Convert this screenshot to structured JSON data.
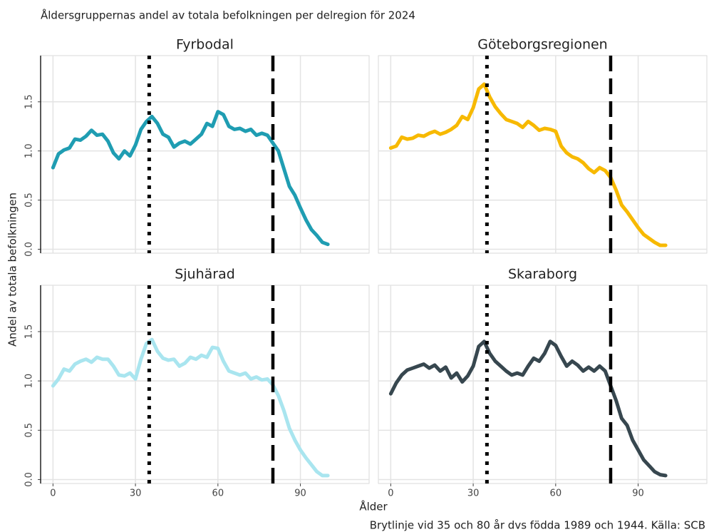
{
  "figure": {
    "title": "Åldersgruppernas andel av totala befolkningen per delregion för 2024",
    "xlabel": "Ålder",
    "ylabel": "Andel av totala befolkningen",
    "caption": "Brytlinje vid 35 och 80 år dvs födda 1989 och 1944. Källa: SCB"
  },
  "chart_data": [
    {
      "type": "line",
      "title": "Fyrbodal",
      "color": "#1f9db2",
      "x": [
        0,
        2,
        4,
        6,
        8,
        10,
        12,
        14,
        16,
        18,
        20,
        22,
        24,
        26,
        28,
        30,
        32,
        34,
        36,
        38,
        40,
        42,
        44,
        46,
        48,
        50,
        52,
        54,
        56,
        58,
        60,
        62,
        64,
        66,
        68,
        70,
        72,
        74,
        76,
        78,
        80,
        82,
        84,
        86,
        88,
        90,
        92,
        94,
        96,
        98,
        100
      ],
      "values": [
        0.83,
        0.97,
        1.01,
        1.03,
        1.12,
        1.11,
        1.15,
        1.21,
        1.16,
        1.17,
        1.1,
        0.98,
        0.92,
        1.0,
        0.95,
        1.06,
        1.22,
        1.3,
        1.35,
        1.28,
        1.17,
        1.14,
        1.04,
        1.08,
        1.1,
        1.07,
        1.12,
        1.17,
        1.28,
        1.25,
        1.4,
        1.37,
        1.25,
        1.22,
        1.23,
        1.2,
        1.22,
        1.16,
        1.18,
        1.16,
        1.08,
        1.0,
        0.82,
        0.64,
        0.55,
        0.42,
        0.3,
        0.2,
        0.14,
        0.07,
        0.05
      ],
      "xlim": [
        -4.5,
        115
      ],
      "ylim": [
        -0.04,
        1.97
      ],
      "xticks": [
        0,
        30,
        60,
        90
      ],
      "yticks": [
        {
          "value": 0,
          "label": "0.0"
        },
        0.5,
        {
          "value": 1,
          "label": "1.0"
        },
        1.5
      ],
      "grid": true,
      "vlines": [
        {
          "value": 35,
          "style": "dotted"
        },
        {
          "value": 80,
          "style": "dashed"
        }
      ]
    },
    {
      "type": "line",
      "title": "Göteborgsregionen",
      "color": "#f7b900",
      "x": [
        0,
        2,
        4,
        6,
        8,
        10,
        12,
        14,
        16,
        18,
        20,
        22,
        24,
        26,
        28,
        30,
        32,
        34,
        36,
        38,
        40,
        42,
        44,
        46,
        48,
        50,
        52,
        54,
        56,
        58,
        60,
        62,
        64,
        66,
        68,
        70,
        72,
        74,
        76,
        78,
        80,
        82,
        84,
        86,
        88,
        90,
        92,
        94,
        96,
        98,
        100
      ],
      "values": [
        1.03,
        1.05,
        1.14,
        1.12,
        1.13,
        1.16,
        1.15,
        1.18,
        1.2,
        1.17,
        1.19,
        1.22,
        1.26,
        1.35,
        1.32,
        1.44,
        1.63,
        1.68,
        1.55,
        1.45,
        1.38,
        1.32,
        1.3,
        1.28,
        1.24,
        1.3,
        1.26,
        1.21,
        1.23,
        1.22,
        1.2,
        1.05,
        0.98,
        0.94,
        0.92,
        0.88,
        0.82,
        0.78,
        0.83,
        0.8,
        0.73,
        0.6,
        0.45,
        0.38,
        0.3,
        0.22,
        0.15,
        0.11,
        0.07,
        0.04,
        0.04
      ],
      "xlim": [
        -4.5,
        115
      ],
      "ylim": [
        -0.04,
        1.97
      ],
      "xticks": [
        0,
        30,
        60,
        90
      ],
      "yticks": [
        {
          "value": 0,
          "label": "0.0"
        },
        0.5,
        {
          "value": 1,
          "label": "1.0"
        },
        1.5
      ],
      "grid": true,
      "vlines": [
        {
          "value": 35,
          "style": "dotted"
        },
        {
          "value": 80,
          "style": "dashed"
        }
      ]
    },
    {
      "type": "line",
      "title": "Sjuhärad",
      "color": "#a9e5ef",
      "x": [
        0,
        2,
        4,
        6,
        8,
        10,
        12,
        14,
        16,
        18,
        20,
        22,
        24,
        26,
        28,
        30,
        32,
        34,
        36,
        38,
        40,
        42,
        44,
        46,
        48,
        50,
        52,
        54,
        56,
        58,
        60,
        62,
        64,
        66,
        68,
        70,
        72,
        74,
        76,
        78,
        80,
        82,
        84,
        86,
        88,
        90,
        92,
        94,
        96,
        98,
        100
      ],
      "values": [
        0.95,
        1.02,
        1.12,
        1.1,
        1.17,
        1.2,
        1.22,
        1.19,
        1.24,
        1.22,
        1.22,
        1.15,
        1.06,
        1.05,
        1.08,
        1.02,
        1.22,
        1.38,
        1.42,
        1.3,
        1.23,
        1.21,
        1.22,
        1.15,
        1.18,
        1.24,
        1.22,
        1.26,
        1.24,
        1.34,
        1.33,
        1.2,
        1.1,
        1.08,
        1.06,
        1.08,
        1.02,
        1.04,
        1.01,
        1.02,
        0.96,
        0.85,
        0.7,
        0.52,
        0.4,
        0.3,
        0.22,
        0.15,
        0.08,
        0.04,
        0.04
      ],
      "xlim": [
        -4.5,
        115
      ],
      "ylim": [
        -0.04,
        1.97
      ],
      "xticks": [
        0,
        30,
        60,
        90
      ],
      "yticks": [
        {
          "value": 0,
          "label": "0.0"
        },
        0.5,
        {
          "value": 1,
          "label": "1.0"
        },
        1.5
      ],
      "grid": true,
      "vlines": [
        {
          "value": 35,
          "style": "dotted"
        },
        {
          "value": 80,
          "style": "dashed"
        }
      ]
    },
    {
      "type": "line",
      "title": "Skaraborg",
      "color": "#37474f",
      "x": [
        0,
        2,
        4,
        6,
        8,
        10,
        12,
        14,
        16,
        18,
        20,
        22,
        24,
        26,
        28,
        30,
        32,
        34,
        36,
        38,
        40,
        42,
        44,
        46,
        48,
        50,
        52,
        54,
        56,
        58,
        60,
        62,
        64,
        66,
        68,
        70,
        72,
        74,
        76,
        78,
        80,
        82,
        84,
        86,
        88,
        90,
        92,
        94,
        96,
        98,
        100
      ],
      "values": [
        0.87,
        0.98,
        1.06,
        1.11,
        1.13,
        1.15,
        1.17,
        1.13,
        1.16,
        1.1,
        1.14,
        1.03,
        1.08,
        0.99,
        1.05,
        1.15,
        1.35,
        1.4,
        1.28,
        1.2,
        1.15,
        1.1,
        1.06,
        1.08,
        1.06,
        1.15,
        1.23,
        1.2,
        1.28,
        1.4,
        1.36,
        1.25,
        1.15,
        1.2,
        1.16,
        1.1,
        1.14,
        1.1,
        1.15,
        1.1,
        0.95,
        0.8,
        0.62,
        0.55,
        0.4,
        0.3,
        0.2,
        0.14,
        0.08,
        0.05,
        0.04
      ],
      "xlim": [
        -4.5,
        115
      ],
      "ylim": [
        -0.04,
        1.97
      ],
      "xticks": [
        0,
        30,
        60,
        90
      ],
      "yticks": [
        {
          "value": 0,
          "label": "0.0"
        },
        0.5,
        {
          "value": 1,
          "label": "1.0"
        },
        1.5
      ],
      "grid": true,
      "vlines": [
        {
          "value": 35,
          "style": "dotted"
        },
        {
          "value": 80,
          "style": "dashed"
        }
      ]
    }
  ]
}
